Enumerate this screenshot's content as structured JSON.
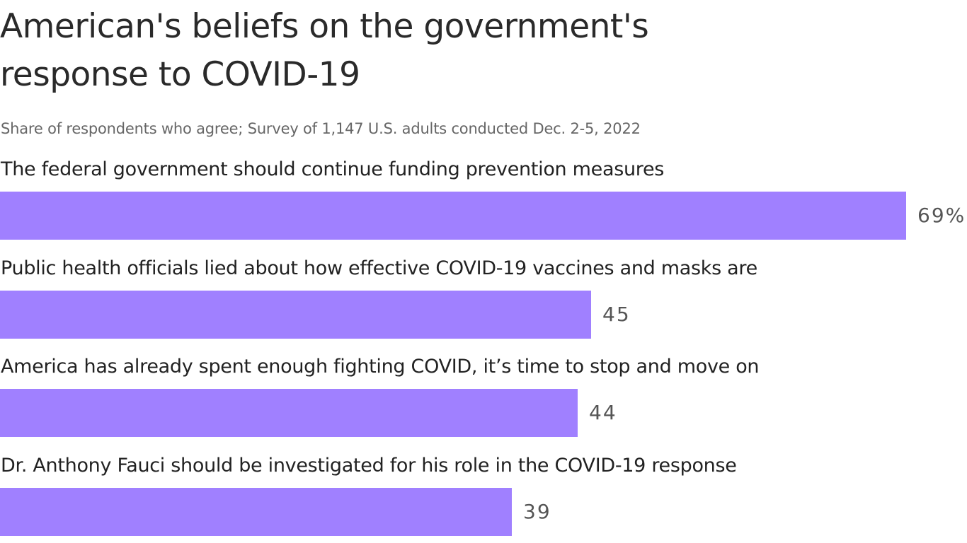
{
  "chart_data": {
    "type": "bar",
    "orientation": "horizontal",
    "title": "American's beliefs on the government's response to COVID-19",
    "subtitle": "Share of respondents who agree; Survey of 1,147 U.S. adults conducted Dec. 2-5, 2022",
    "categories": [
      "The federal government should continue funding prevention measures",
      "Public health officials lied about how effective COVID-19 vaccines and masks are",
      "America has already spent enough fighting COVID, it’s time to stop and move on",
      "Dr. Anthony Fauci should be investigated for his role in the COVID-19 response"
    ],
    "values": [
      69,
      45,
      44,
      39
    ],
    "value_labels": [
      "69%",
      "45",
      "44",
      "39"
    ],
    "bar_color": "#a080ff",
    "xlim": [
      0,
      69
    ],
    "grid": false
  }
}
